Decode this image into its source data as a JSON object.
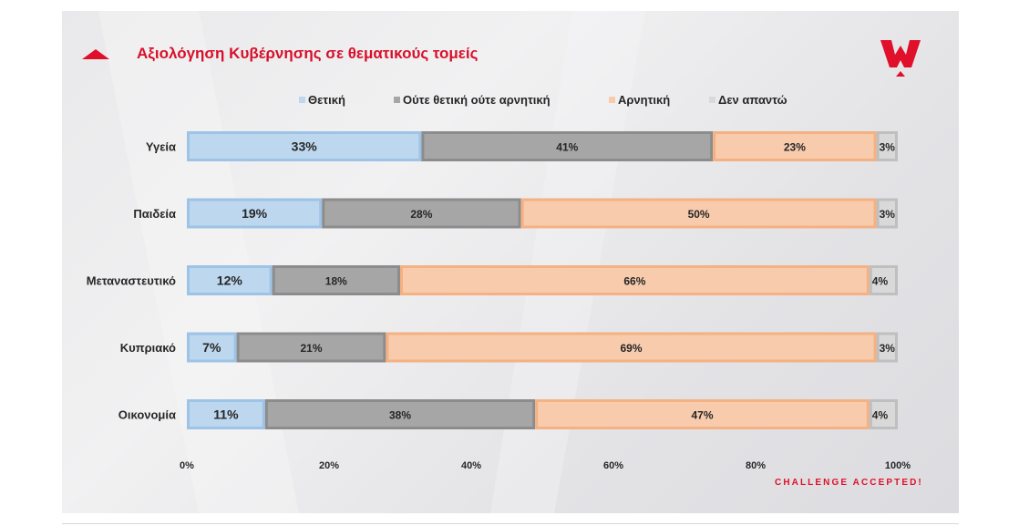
{
  "slide": {
    "title": "Αξιολόγηση Κυβέρνησης σε θεματικούς τομείς",
    "logo": "wedge-logo-red",
    "tagline": "CHALLENGE ACCEPTED!"
  },
  "colors": {
    "accent": "#e0102a",
    "positive": "#bdd7ee",
    "neutral": "#a6a6a6",
    "negative": "#f8cbad",
    "no_answer": "#d9d9d9"
  },
  "chart_data": {
    "type": "bar",
    "orientation": "horizontal",
    "stacked": true,
    "normalized": true,
    "categories": [
      "Υγεία",
      "Παιδεία",
      "Μεταναστευτικό",
      "Κυπριακό",
      "Οικονομία"
    ],
    "series": [
      {
        "name": "Θετική",
        "color": "#bdd7ee",
        "values": [
          33,
          19,
          12,
          7,
          11
        ]
      },
      {
        "name": "Ούτε θετική ούτε αρνητική",
        "color": "#a6a6a6",
        "values": [
          41,
          28,
          18,
          21,
          38
        ]
      },
      {
        "name": "Αρνητική",
        "color": "#f8cbad",
        "values": [
          23,
          50,
          66,
          69,
          47
        ]
      },
      {
        "name": "Δεν απαντώ",
        "color": "#d9d9d9",
        "values": [
          3,
          3,
          4,
          3,
          4
        ]
      }
    ],
    "value_suffix": "%",
    "xlim": [
      0,
      100
    ],
    "xticks": [
      "0%",
      "20%",
      "40%",
      "60%",
      "80%",
      "100%"
    ],
    "legend": "top",
    "grid": false
  }
}
